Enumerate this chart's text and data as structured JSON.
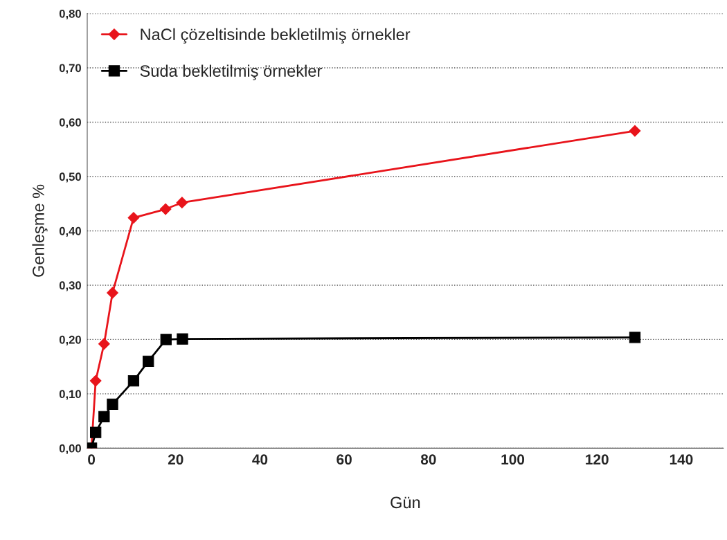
{
  "chart_data": {
    "type": "line",
    "xlabel": "Gün",
    "ylabel": "Genleşme %",
    "series": [
      {
        "name": "NaCl çözeltisinde bekletilmiş örnekler",
        "color": "#e8141b",
        "marker": "diamond",
        "x": [
          0,
          1,
          3,
          5,
          10,
          17.6,
          21.5,
          129
        ],
        "values": [
          0,
          0.124,
          0.192,
          0.286,
          0.424,
          0.44,
          0.452,
          0.584
        ]
      },
      {
        "name": "Suda bekletilmiş örnekler",
        "color": "#000000",
        "marker": "square",
        "x": [
          0,
          1,
          3,
          5,
          10,
          13.5,
          17.7,
          21.6,
          129
        ],
        "values": [
          0,
          0.029,
          0.058,
          0.081,
          0.124,
          0.16,
          0.2,
          0.201,
          0.204
        ]
      }
    ],
    "xlim": [
      -1,
      150
    ],
    "xticks": [
      0,
      20,
      40,
      60,
      80,
      100,
      120,
      140
    ],
    "ylim": [
      0,
      0.8
    ],
    "yticks": [
      {
        "value": 0,
        "label": "0,00"
      },
      {
        "value": 0.1,
        "label": "0,10"
      },
      {
        "value": 0.2,
        "label": "0,20"
      },
      {
        "value": 0.3,
        "label": "0,30"
      },
      {
        "value": 0.4,
        "label": "0,40"
      },
      {
        "value": 0.5,
        "label": "0,50"
      },
      {
        "value": 0.6,
        "label": "0,60"
      },
      {
        "value": 0.7,
        "label": "0,70"
      },
      {
        "value": 0.8,
        "label": "0,80"
      }
    ],
    "grid": "y",
    "legend": "top left"
  }
}
